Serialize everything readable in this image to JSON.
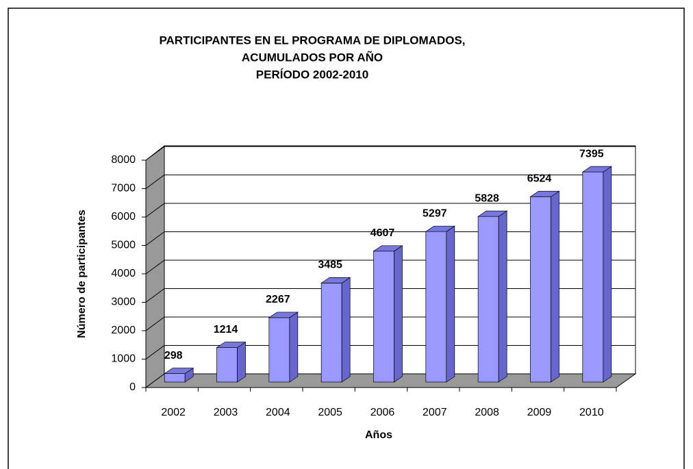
{
  "chart_data": {
    "type": "bar3d",
    "title": [
      "PARTICIPANTES EN EL PROGRAMA DE DIPLOMADOS,",
      "ACUMULADOS POR AÑO",
      "PERÍODO 2002-2010"
    ],
    "xlabel": "Años",
    "ylabel": "Número de participantes",
    "categories": [
      "2002",
      "2003",
      "2004",
      "2005",
      "2006",
      "2007",
      "2008",
      "2009",
      "2010"
    ],
    "values": [
      298,
      1214,
      2267,
      3485,
      4607,
      5297,
      5828,
      6524,
      7395
    ],
    "color": "#9999ff",
    "ylim": [
      0,
      8000
    ],
    "yticks": [
      0,
      1000,
      2000,
      3000,
      4000,
      5000,
      6000,
      7000,
      8000
    ],
    "grid": true
  }
}
